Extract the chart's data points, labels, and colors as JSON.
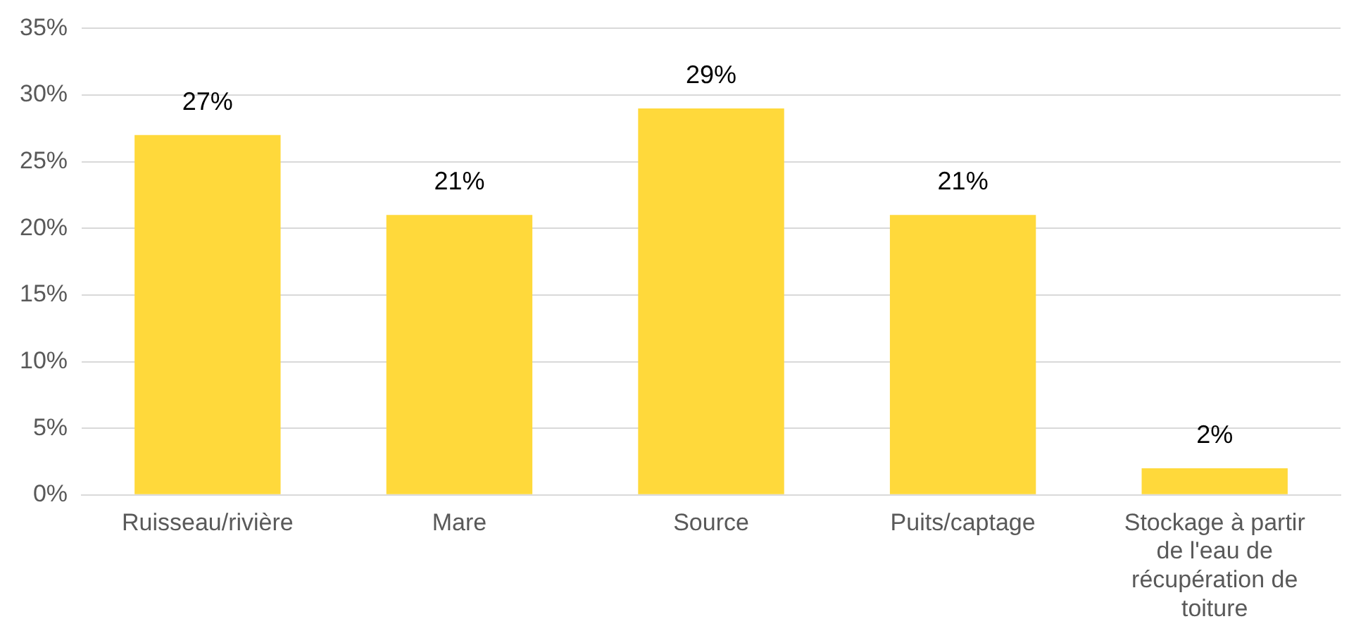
{
  "chart_data": {
    "type": "bar",
    "categories": [
      "Ruisseau/rivière",
      "Mare",
      "Source",
      "Puits/captage",
      "Stockage à partir de l'eau de récupération de toiture"
    ],
    "values": [
      27,
      21,
      29,
      21,
      2
    ],
    "value_labels": [
      "27%",
      "21%",
      "29%",
      "21%",
      "2%"
    ],
    "color": "#ffd93b",
    "ylim": [
      0,
      35
    ],
    "yticks": [
      {
        "value": 0,
        "label": "0%"
      },
      {
        "value": 5,
        "label": "5%"
      },
      {
        "value": 10,
        "label": "10%"
      },
      {
        "value": 15,
        "label": "15%"
      },
      {
        "value": 20,
        "label": "20%"
      },
      {
        "value": 25,
        "label": "25%"
      },
      {
        "value": 30,
        "label": "30%"
      },
      {
        "value": 35,
        "label": "35%"
      }
    ],
    "grid": "y",
    "legend": false
  }
}
